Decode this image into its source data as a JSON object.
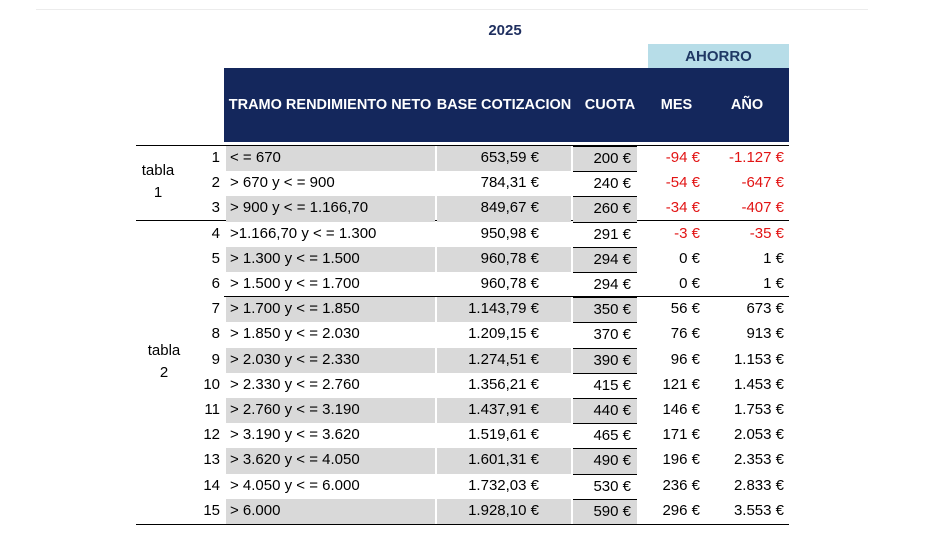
{
  "year": "2025",
  "ahorro": "AHORRO",
  "headers": {
    "tramo": "TRAMO RENDIMIENTO NETO",
    "base": "BASE COTIZACION",
    "cuota": "CUOTA",
    "mes": "MES",
    "anio": "AÑO"
  },
  "groups": [
    {
      "label": "tabla 1"
    },
    {
      "label": "tabla 2"
    }
  ],
  "rows": [
    {
      "num": "1",
      "tramo": "< = 670",
      "base": "653,59 €",
      "cuota": "200 €",
      "mes": "-94 €",
      "anio": "-1.127 €"
    },
    {
      "num": "2",
      "tramo": "> 670 y < = 900",
      "base": "784,31 €",
      "cuota": "240 €",
      "mes": "-54 €",
      "anio": "-647 €"
    },
    {
      "num": "3",
      "tramo": "> 900 y < = 1.166,70",
      "base": "849,67 €",
      "cuota": "260 €",
      "mes": "-34 €",
      "anio": "-407 €"
    },
    {
      "num": "4",
      "tramo": ">1.166,70 y < = 1.300",
      "base": "950,98 €",
      "cuota": "291 €",
      "mes": "-3 €",
      "anio": "-35 €"
    },
    {
      "num": "5",
      "tramo": "> 1.300 y < = 1.500",
      "base": "960,78 €",
      "cuota": "294 €",
      "mes": "0 €",
      "anio": "1 €"
    },
    {
      "num": "6",
      "tramo": "> 1.500 y < = 1.700",
      "base": "960,78 €",
      "cuota": "294 €",
      "mes": "0 €",
      "anio": "1 €"
    },
    {
      "num": "7",
      "tramo": "> 1.700 y < = 1.850",
      "base": "1.143,79 €",
      "cuota": "350 €",
      "mes": "56 €",
      "anio": "673 €"
    },
    {
      "num": "8",
      "tramo": "> 1.850 y < = 2.030",
      "base": "1.209,15 €",
      "cuota": "370 €",
      "mes": "76 €",
      "anio": "913 €"
    },
    {
      "num": "9",
      "tramo": "> 2.030 y < = 2.330",
      "base": "1.274,51 €",
      "cuota": "390 €",
      "mes": "96 €",
      "anio": "1.153 €"
    },
    {
      "num": "10",
      "tramo": "> 2.330 y < = 2.760",
      "base": "1.356,21 €",
      "cuota": "415 €",
      "mes": "121 €",
      "anio": "1.453 €"
    },
    {
      "num": "11",
      "tramo": "> 2.760 y < = 3.190",
      "base": "1.437,91 €",
      "cuota": "440 €",
      "mes": "146 €",
      "anio": "1.753 €"
    },
    {
      "num": "12",
      "tramo": "> 3.190 y < = 3.620",
      "base": "1.519,61 €",
      "cuota": "465 €",
      "mes": "171 €",
      "anio": "2.053 €"
    },
    {
      "num": "13",
      "tramo": "> 3.620 y < = 4.050",
      "base": "1.601,31 €",
      "cuota": "490 €",
      "mes": "196 €",
      "anio": "2.353 €"
    },
    {
      "num": "14",
      "tramo": "> 4.050 y  < = 6.000",
      "base": "1.732,03 €",
      "cuota": "530 €",
      "mes": "236 €",
      "anio": "2.833 €"
    },
    {
      "num": "15",
      "tramo": "> 6.000",
      "base": "1.928,10 €",
      "cuota": "590 €",
      "mes": "296 €",
      "anio": "3.553 €"
    }
  ],
  "colors": {
    "header_bg": "#14275c",
    "ahorro_bg": "#b7dde8",
    "negative": "#e21414",
    "row_shade": "#d9d9d9"
  }
}
